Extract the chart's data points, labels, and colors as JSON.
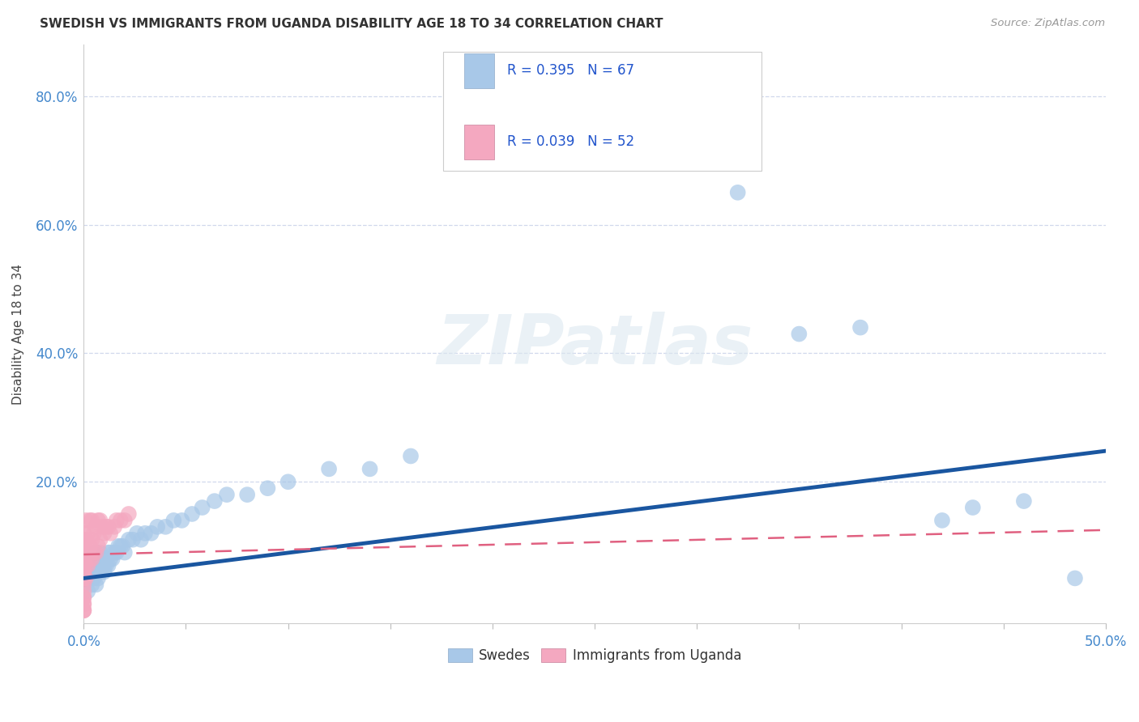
{
  "title": "SWEDISH VS IMMIGRANTS FROM UGANDA DISABILITY AGE 18 TO 34 CORRELATION CHART",
  "source": "Source: ZipAtlas.com",
  "ylabel": "Disability Age 18 to 34",
  "xlim": [
    0.0,
    0.5
  ],
  "ylim": [
    -0.02,
    0.88
  ],
  "xticks": [
    0.0,
    0.05,
    0.1,
    0.15,
    0.2,
    0.25,
    0.3,
    0.35,
    0.4,
    0.45,
    0.5
  ],
  "xtick_labels_show": [
    true,
    false,
    false,
    false,
    false,
    false,
    false,
    false,
    false,
    false,
    true
  ],
  "yticks": [
    0.0,
    0.2,
    0.4,
    0.6,
    0.8
  ],
  "ytick_labels": [
    "",
    "20.0%",
    "40.0%",
    "60.0%",
    "80.0%"
  ],
  "swedes_color": "#a8c8e8",
  "uganda_color": "#f4a8c0",
  "line_blue": "#1a56a0",
  "line_pink": "#e06080",
  "R_swedes": 0.395,
  "N_swedes": 67,
  "R_uganda": 0.039,
  "N_uganda": 52,
  "legend_label_swedes": "Swedes",
  "legend_label_uganda": "Immigrants from Uganda",
  "watermark": "ZIPatlas",
  "background_color": "#ffffff",
  "grid_color": "#d0d8ec",
  "sw_line_start_y": 0.05,
  "sw_line_end_y": 0.248,
  "ug_line_start_y": 0.087,
  "ug_line_end_y": 0.125,
  "swedes_x": [
    0.002,
    0.003,
    0.003,
    0.004,
    0.004,
    0.004,
    0.005,
    0.005,
    0.005,
    0.005,
    0.006,
    0.006,
    0.006,
    0.006,
    0.007,
    0.007,
    0.007,
    0.007,
    0.008,
    0.008,
    0.008,
    0.008,
    0.009,
    0.009,
    0.01,
    0.01,
    0.01,
    0.011,
    0.011,
    0.012,
    0.012,
    0.013,
    0.013,
    0.014,
    0.015,
    0.016,
    0.017,
    0.018,
    0.019,
    0.02,
    0.022,
    0.024,
    0.026,
    0.028,
    0.03,
    0.033,
    0.036,
    0.04,
    0.044,
    0.048,
    0.053,
    0.058,
    0.064,
    0.07,
    0.08,
    0.09,
    0.1,
    0.12,
    0.14,
    0.16,
    0.32,
    0.35,
    0.38,
    0.42,
    0.435,
    0.46,
    0.485
  ],
  "swedes_y": [
    0.03,
    0.05,
    0.06,
    0.04,
    0.07,
    0.08,
    0.05,
    0.06,
    0.07,
    0.08,
    0.04,
    0.06,
    0.07,
    0.09,
    0.05,
    0.06,
    0.07,
    0.08,
    0.06,
    0.07,
    0.08,
    0.09,
    0.07,
    0.08,
    0.06,
    0.07,
    0.08,
    0.07,
    0.08,
    0.07,
    0.09,
    0.08,
    0.09,
    0.08,
    0.09,
    0.09,
    0.1,
    0.1,
    0.1,
    0.09,
    0.11,
    0.11,
    0.12,
    0.11,
    0.12,
    0.12,
    0.13,
    0.13,
    0.14,
    0.14,
    0.15,
    0.16,
    0.17,
    0.18,
    0.18,
    0.19,
    0.2,
    0.22,
    0.22,
    0.24,
    0.65,
    0.43,
    0.44,
    0.14,
    0.16,
    0.17,
    0.05
  ],
  "uganda_x": [
    0.0,
    0.0,
    0.0,
    0.0,
    0.0,
    0.0,
    0.0,
    0.0,
    0.0,
    0.0,
    0.0,
    0.0,
    0.0,
    0.0,
    0.0,
    0.0,
    0.0,
    0.0,
    0.0,
    0.0,
    0.001,
    0.001,
    0.001,
    0.001,
    0.001,
    0.002,
    0.002,
    0.002,
    0.003,
    0.003,
    0.003,
    0.004,
    0.004,
    0.004,
    0.005,
    0.005,
    0.006,
    0.006,
    0.007,
    0.007,
    0.008,
    0.008,
    0.009,
    0.01,
    0.011,
    0.012,
    0.013,
    0.015,
    0.016,
    0.018,
    0.02,
    0.022
  ],
  "uganda_y": [
    0.0,
    0.0,
    0.0,
    0.01,
    0.01,
    0.02,
    0.02,
    0.03,
    0.04,
    0.05,
    0.05,
    0.06,
    0.06,
    0.07,
    0.08,
    0.08,
    0.09,
    0.1,
    0.11,
    0.12,
    0.05,
    0.07,
    0.09,
    0.11,
    0.14,
    0.07,
    0.09,
    0.12,
    0.08,
    0.1,
    0.14,
    0.08,
    0.11,
    0.14,
    0.09,
    0.12,
    0.09,
    0.13,
    0.1,
    0.14,
    0.11,
    0.14,
    0.13,
    0.12,
    0.13,
    0.13,
    0.12,
    0.13,
    0.14,
    0.14,
    0.14,
    0.15
  ]
}
